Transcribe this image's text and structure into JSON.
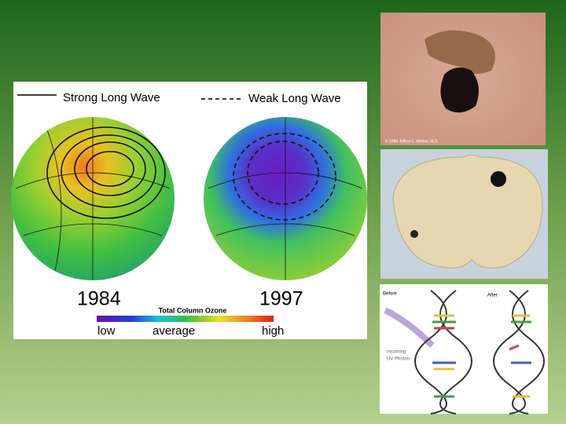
{
  "ozone": {
    "strong_label": "Strong Long Wave",
    "weak_label": "Weak Long Wave",
    "year_left": "1984",
    "year_right": "1997",
    "scale_title": "Total Column Ozone",
    "low": "low",
    "average": "average",
    "high": "high"
  },
  "melanoma": {
    "credit": "© 1996 Jeffrey L. Melton, M.D."
  },
  "dna": {
    "before": "Before",
    "after": "After",
    "photon_lines": [
      "Incoming",
      "UV Photon"
    ]
  }
}
